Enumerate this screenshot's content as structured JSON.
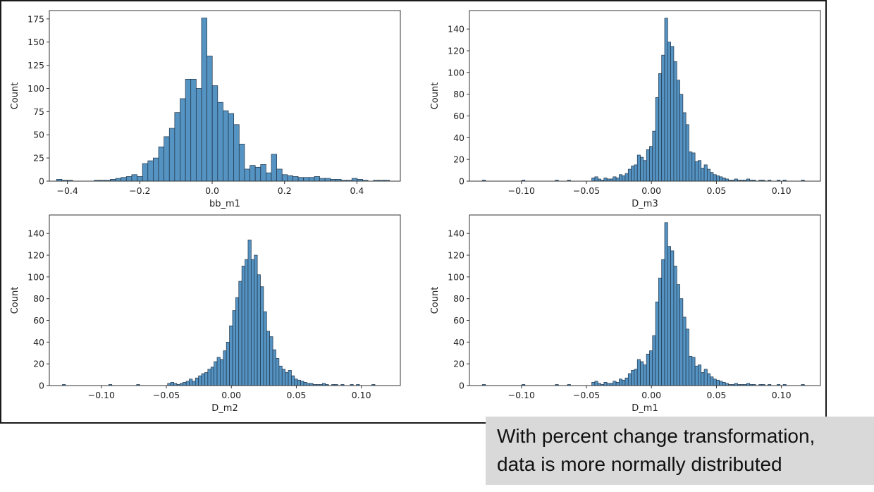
{
  "callout": {
    "line1": "With percent change transformation,",
    "line2": "data is more normally distributed"
  },
  "colors": {
    "bar_fill": "#5593c2",
    "bar_edge": "#1f3347",
    "axes": "#333333",
    "text": "#222222"
  },
  "chart_data": [
    {
      "type": "bar",
      "subtype": "histogram",
      "xlabel": "bb_m1",
      "ylabel": "Count",
      "xlim": [
        -0.45,
        0.52
      ],
      "ylim": [
        0,
        184
      ],
      "xticks": [
        -0.4,
        -0.2,
        0.0,
        0.2,
        0.4
      ],
      "xtick_labels": [
        "−0.4",
        "−0.2",
        "0.0",
        "0.2",
        "0.4"
      ],
      "yticks": [
        0,
        25,
        50,
        75,
        100,
        125,
        150,
        175
      ],
      "yrange": [
        -0.43,
        0.49
      ],
      "counts": [
        2,
        1,
        1,
        0,
        0,
        0,
        0,
        1,
        1,
        1,
        2,
        3,
        4,
        5,
        7,
        5,
        19,
        22,
        25,
        37,
        48,
        57,
        74,
        89,
        110,
        110,
        100,
        176,
        135,
        103,
        85,
        76,
        73,
        61,
        40,
        13,
        17,
        15,
        18,
        9,
        29,
        13,
        7,
        6,
        5,
        4,
        4,
        4,
        5,
        3,
        3,
        2,
        2,
        1,
        1,
        3,
        2,
        1,
        0,
        1,
        1,
        1
      ]
    },
    {
      "type": "bar",
      "subtype": "histogram",
      "xlabel": "D_m3",
      "ylabel": "Count",
      "xlim": [
        -0.14,
        0.13
      ],
      "ylim": [
        0,
        157
      ],
      "xticks": [
        -0.1,
        -0.05,
        0.0,
        0.05,
        0.1
      ],
      "xtick_labels": [
        "−0.10",
        "−0.05",
        "0.00",
        "0.05",
        "0.10"
      ],
      "yticks": [
        0,
        20,
        40,
        60,
        80,
        100,
        120,
        140
      ],
      "yrange": [
        -0.13,
        0.12
      ],
      "counts": [
        1,
        0,
        0,
        0,
        0,
        0,
        0,
        0,
        0,
        0,
        0,
        0,
        0,
        1,
        0,
        0,
        0,
        0,
        0,
        0,
        0,
        0,
        0,
        0,
        1,
        0,
        0,
        0,
        1,
        0,
        0,
        0,
        0,
        0,
        0,
        0,
        3,
        4,
        2,
        1,
        3,
        2,
        2,
        4,
        3,
        6,
        5,
        7,
        11,
        14,
        15,
        24,
        22,
        19,
        29,
        32,
        46,
        77,
        99,
        116,
        150,
        128,
        124,
        110,
        93,
        80,
        63,
        52,
        27,
        26,
        18,
        19,
        12,
        15,
        11,
        8,
        6,
        5,
        4,
        3,
        2,
        1,
        1,
        2,
        1,
        1,
        1,
        2,
        1,
        1,
        0,
        1,
        1,
        0,
        1,
        0,
        0,
        1,
        0,
        1,
        0,
        0,
        0,
        0,
        0,
        1,
        0
      ]
    },
    {
      "type": "bar",
      "subtype": "histogram",
      "xlabel": "D_m2",
      "ylabel": "Count",
      "xlim": [
        -0.14,
        0.13
      ],
      "ylim": [
        0,
        157
      ],
      "xticks": [
        -0.1,
        -0.05,
        0.0,
        0.05,
        0.1
      ],
      "xtick_labels": [
        "−0.10",
        "−0.05",
        "0.00",
        "0.05",
        "0.10"
      ],
      "yticks": [
        0,
        20,
        40,
        60,
        80,
        100,
        120,
        140
      ],
      "yrange": [
        -0.13,
        0.12
      ],
      "counts": [
        1,
        0,
        0,
        0,
        0,
        0,
        0,
        0,
        0,
        0,
        0,
        0,
        0,
        0,
        0,
        1,
        0,
        0,
        0,
        0,
        0,
        0,
        0,
        0,
        1,
        0,
        0,
        0,
        0,
        0,
        0,
        0,
        0,
        0,
        2,
        3,
        2,
        1,
        2,
        3,
        4,
        6,
        4,
        7,
        9,
        11,
        12,
        15,
        17,
        22,
        26,
        24,
        32,
        40,
        55,
        69,
        81,
        96,
        110,
        116,
        134,
        116,
        120,
        102,
        91,
        68,
        50,
        45,
        33,
        25,
        18,
        15,
        12,
        14,
        9,
        6,
        5,
        4,
        3,
        2,
        2,
        1,
        1,
        1,
        2,
        1,
        0,
        1,
        1,
        0,
        1,
        0,
        0,
        1,
        0,
        1,
        0,
        0,
        0,
        0,
        1,
        0,
        0,
        0,
        0
      ]
    },
    {
      "type": "bar",
      "subtype": "histogram",
      "xlabel": "D_m1",
      "ylabel": "Count",
      "xlim": [
        -0.14,
        0.13
      ],
      "ylim": [
        0,
        157
      ],
      "xticks": [
        -0.1,
        -0.05,
        0.0,
        0.05,
        0.1
      ],
      "xtick_labels": [
        "−0.10",
        "−0.05",
        "0.00",
        "0.05",
        "0.10"
      ],
      "yticks": [
        0,
        20,
        40,
        60,
        80,
        100,
        120,
        140
      ],
      "yrange": [
        -0.13,
        0.12
      ],
      "counts": [
        1,
        0,
        0,
        0,
        0,
        0,
        0,
        0,
        0,
        0,
        0,
        0,
        0,
        1,
        0,
        0,
        0,
        0,
        0,
        0,
        0,
        0,
        0,
        0,
        1,
        0,
        0,
        0,
        1,
        0,
        0,
        0,
        0,
        0,
        0,
        0,
        3,
        4,
        2,
        1,
        3,
        2,
        2,
        4,
        3,
        6,
        5,
        7,
        11,
        14,
        15,
        24,
        22,
        19,
        29,
        32,
        46,
        77,
        99,
        116,
        150,
        128,
        124,
        110,
        93,
        80,
        63,
        52,
        27,
        26,
        18,
        19,
        12,
        15,
        11,
        8,
        6,
        5,
        4,
        3,
        2,
        1,
        1,
        2,
        1,
        1,
        1,
        2,
        1,
        1,
        0,
        1,
        1,
        0,
        1,
        0,
        0,
        1,
        0,
        1,
        0,
        0,
        0,
        0,
        0,
        1,
        0
      ]
    }
  ]
}
